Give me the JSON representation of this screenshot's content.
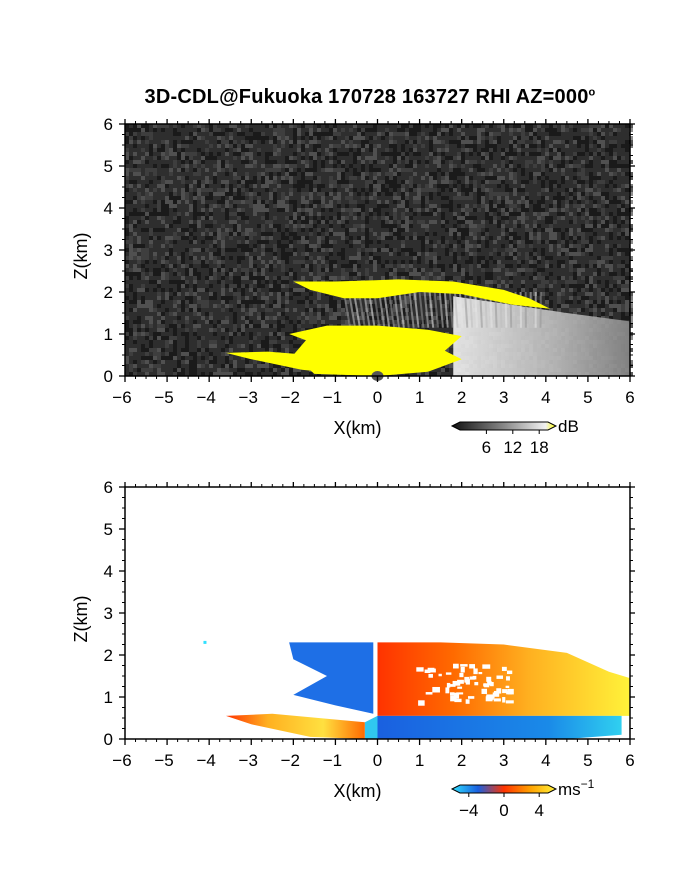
{
  "title": {
    "text": "3D-CDL@Fukuoka 170728 163727 RHI AZ=000",
    "superscript": "o"
  },
  "chart_data": [
    {
      "type": "heatmap",
      "name": "reflectivity",
      "xlabel": "X(km)",
      "ylabel": "Z(km)",
      "xlim": [
        -6,
        6
      ],
      "ylim": [
        0,
        6
      ],
      "xticks": [
        "-6",
        "-5",
        "-4",
        "-3",
        "-2",
        "-1",
        "0",
        "1",
        "2",
        "3",
        "4",
        "5",
        "6"
      ],
      "yticks": [
        "0",
        "1",
        "2",
        "3",
        "4",
        "5",
        "6"
      ],
      "colorbar": {
        "unit": "dB",
        "ticks": [
          "6",
          "12",
          "18"
        ],
        "range": [
          0,
          20
        ]
      },
      "colors": {
        "background": "#2e2e2e",
        "saturated": "#ffff00"
      },
      "features": [
        {
          "feature": "noise-background",
          "x_range": [
            -6,
            6
          ],
          "z_range": [
            0,
            6
          ],
          "value": 2
        },
        {
          "feature": "upper-layer",
          "x_range": [
            -2,
            4.1
          ],
          "z_top": 2.25,
          "z_bottom": 1.8,
          "value": 18
        },
        {
          "feature": "lower-layer-core",
          "x_range": [
            -2.1,
            2.0
          ],
          "z_top": 1.2,
          "z_bottom": 0,
          "value": 18
        },
        {
          "feature": "surface-plume",
          "x_range": [
            -3.6,
            0
          ],
          "z_top": 0.6,
          "z_bottom": 0,
          "value": 18
        },
        {
          "feature": "decaying-layer",
          "x_range": [
            1.8,
            6
          ],
          "z_top": 1.5,
          "z_bottom": 0,
          "value": 12
        }
      ]
    },
    {
      "type": "heatmap",
      "name": "doppler-velocity",
      "xlabel": "X(km)",
      "ylabel": "Z(km)",
      "xlim": [
        -6,
        6
      ],
      "ylim": [
        0,
        6
      ],
      "xticks": [
        "-6",
        "-5",
        "-4",
        "-3",
        "-2",
        "-1",
        "0",
        "1",
        "2",
        "3",
        "4",
        "5",
        "6"
      ],
      "yticks": [
        "0",
        "1",
        "2",
        "3",
        "4",
        "5",
        "6"
      ],
      "colorbar": {
        "unit": "ms",
        "unit_exponent": "-1",
        "ticks": [
          "-4",
          "0",
          "4"
        ],
        "range": [
          -5,
          5
        ]
      },
      "colors": {
        "negative": "#1e6fe6",
        "zero": "#ff3300",
        "positive": "#ffee33"
      },
      "features": [
        {
          "feature": "upper-left-inflow",
          "x_range": [
            -2.1,
            -0.1
          ],
          "z_range": [
            1.0,
            2.3
          ],
          "value": -3
        },
        {
          "feature": "upper-right-outflow",
          "x_range": [
            0,
            6
          ],
          "z_range": [
            0.6,
            2.3
          ],
          "value": 2
        },
        {
          "feature": "lower-return-flow",
          "x_range": [
            0,
            5.8
          ],
          "z_range": [
            0,
            0.55
          ],
          "value": -3
        },
        {
          "feature": "surface-left-outflow",
          "x_range": [
            -3.6,
            -0.3
          ],
          "z_range": [
            0,
            0.6
          ],
          "value": 2
        },
        {
          "feature": "isolated-echo",
          "x": -4.1,
          "z": 2.3,
          "value": -4
        }
      ]
    }
  ]
}
